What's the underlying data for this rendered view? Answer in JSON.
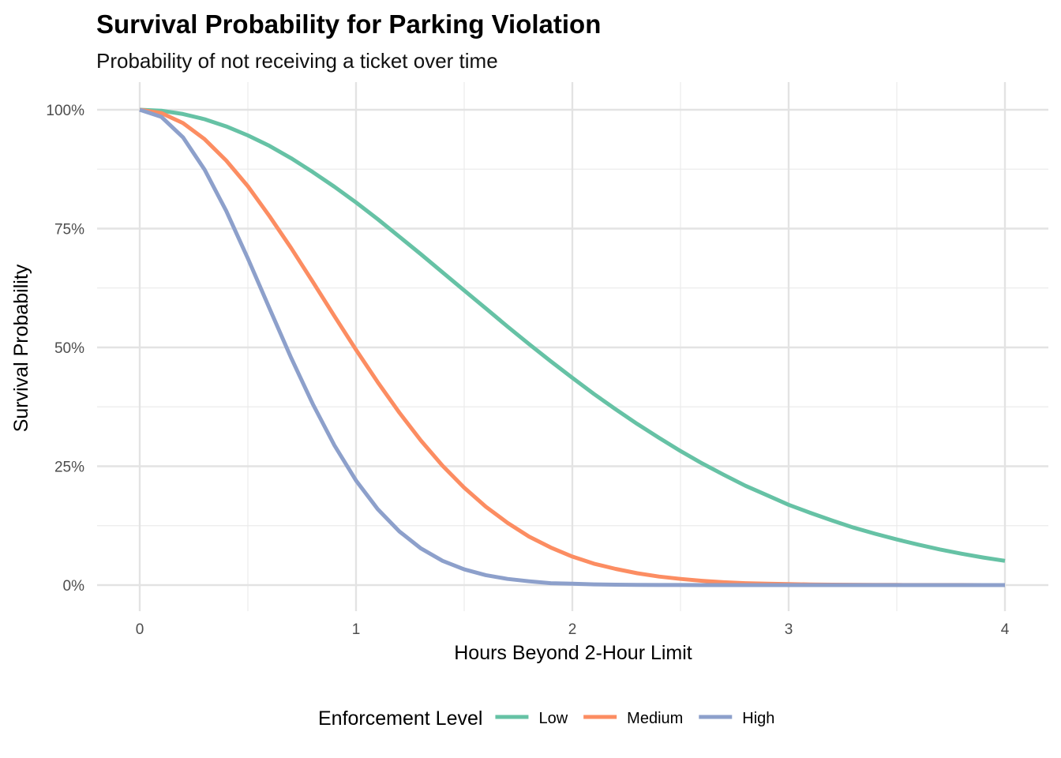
{
  "chart_data": {
    "type": "line",
    "title": "Survival Probability for Parking Violation",
    "subtitle": "Probability of not receiving a ticket over time",
    "xlabel": "Hours Beyond 2-Hour Limit",
    "ylabel": "Survival Probability",
    "xlim": [
      0,
      4
    ],
    "ylim": [
      0,
      1
    ],
    "x_ticks": [
      0,
      1,
      2,
      3,
      4
    ],
    "x_tick_labels": [
      "0",
      "1",
      "2",
      "3",
      "4"
    ],
    "y_ticks": [
      0,
      0.25,
      0.5,
      0.75,
      1
    ],
    "y_tick_labels": [
      "0%",
      "25%",
      "50%",
      "75%",
      "100%"
    ],
    "grid": true,
    "legend": {
      "title": "Enforcement Level",
      "position": "bottom"
    },
    "x": [
      0,
      0.1,
      0.2,
      0.3,
      0.4,
      0.5,
      0.6,
      0.7,
      0.8,
      0.9,
      1.0,
      1.1,
      1.2,
      1.3,
      1.4,
      1.5,
      1.6,
      1.7,
      1.8,
      1.9,
      2.0,
      2.1,
      2.2,
      2.3,
      2.4,
      2.5,
      2.6,
      2.7,
      2.8,
      2.9,
      3.0,
      3.1,
      3.2,
      3.3,
      3.4,
      3.5,
      3.6,
      3.7,
      3.8,
      3.9,
      4.0
    ],
    "series": [
      {
        "name": "Low",
        "color": "#66C2A5",
        "values": [
          1.0,
          0.998,
          0.991,
          0.98,
          0.965,
          0.946,
          0.924,
          0.898,
          0.869,
          0.838,
          0.805,
          0.77,
          0.733,
          0.696,
          0.658,
          0.62,
          0.582,
          0.544,
          0.507,
          0.471,
          0.436,
          0.402,
          0.37,
          0.339,
          0.31,
          0.282,
          0.256,
          0.232,
          0.209,
          0.189,
          0.169,
          0.152,
          0.136,
          0.121,
          0.108,
          0.096,
          0.085,
          0.075,
          0.066,
          0.058,
          0.051
        ]
      },
      {
        "name": "Medium",
        "color": "#FC8D62",
        "values": [
          1.0,
          0.993,
          0.972,
          0.938,
          0.893,
          0.839,
          0.776,
          0.709,
          0.638,
          0.566,
          0.495,
          0.427,
          0.363,
          0.304,
          0.251,
          0.205,
          0.165,
          0.131,
          0.102,
          0.079,
          0.06,
          0.045,
          0.034,
          0.025,
          0.018,
          0.013,
          0.009,
          0.006,
          0.004,
          0.003,
          0.002,
          0.0013,
          0.0009,
          0.0006,
          0.0004,
          0.0003,
          0.0002,
          0.0001,
          0.0001,
          0.0,
          0.0
        ]
      },
      {
        "name": "High",
        "color": "#8DA0CB",
        "values": [
          1.0,
          0.985,
          0.942,
          0.874,
          0.787,
          0.687,
          0.582,
          0.478,
          0.381,
          0.294,
          0.22,
          0.16,
          0.113,
          0.077,
          0.051,
          0.033,
          0.021,
          0.013,
          0.008,
          0.004,
          0.003,
          0.0015,
          0.0008,
          0.0004,
          0.0002,
          0.0001,
          0.0,
          0.0,
          0.0,
          0.0,
          0.0,
          0.0,
          0.0,
          0.0,
          0.0,
          0.0,
          0.0,
          0.0,
          0.0,
          0.0,
          0.0
        ]
      }
    ]
  }
}
